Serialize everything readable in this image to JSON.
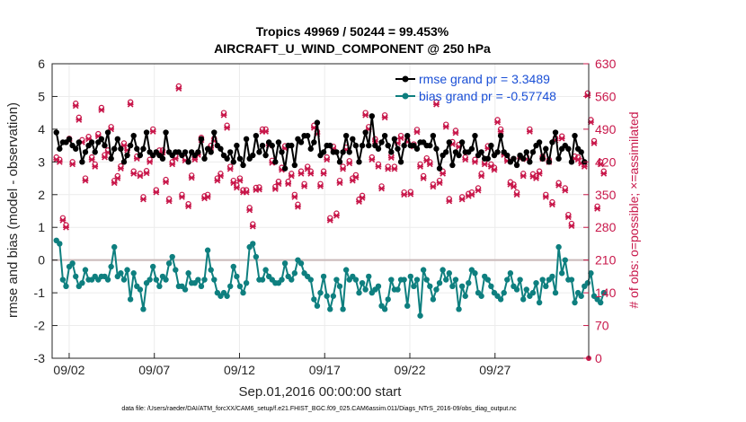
{
  "chart_data": {
    "type": "line",
    "title": "Tropics 49969 / 50244 = 99.453%",
    "subtitle": "AIRCRAFT_U_WIND_COMPONENT @ 250 hPa",
    "xlabel": "Sep.01,2016 00:00:00 start",
    "ylabel": "rmse and bias (model - observation)",
    "y2label": "# of obs: o=possible; ×=assimilated",
    "xlim": [
      0,
      31.5
    ],
    "ylim": [
      -3,
      6
    ],
    "y2lim": [
      0,
      630
    ],
    "x_ticks": [
      {
        "x": 1,
        "label": "09/02"
      },
      {
        "x": 6,
        "label": "09/07"
      },
      {
        "x": 11,
        "label": "09/12"
      },
      {
        "x": 16,
        "label": "09/17"
      },
      {
        "x": 21,
        "label": "09/22"
      },
      {
        "x": 26,
        "label": "09/27"
      }
    ],
    "y_ticks": [
      -3,
      -2,
      -1,
      0,
      1,
      2,
      3,
      4,
      5,
      6
    ],
    "y2_ticks": [
      0,
      70,
      140,
      210,
      280,
      350,
      420,
      490,
      560,
      630
    ],
    "grid": true,
    "legend_position": "top-right",
    "series": [
      {
        "name": "rmse",
        "legend": "rmse grand pr = 3.3489",
        "color": "#000000",
        "axis": "left",
        "values": [
          3.9,
          3.4,
          3.6,
          3.6,
          3.7,
          3.5,
          3.4,
          3.6,
          3.0,
          3.3,
          3.5,
          3.6,
          3.3,
          3.6,
          3.7,
          3.5,
          3.9,
          3.1,
          3.4,
          3.7,
          3.4,
          3.0,
          3.2,
          3.5,
          3.8,
          3.4,
          3.2,
          3.4,
          3.9,
          3.3,
          3.2,
          3.3,
          3.2,
          3.1,
          3.9,
          3.3,
          3.2,
          3.3,
          3.3,
          3.2,
          3.3,
          3.0,
          3.3,
          3.2,
          3.3,
          3.7,
          3.1,
          3.4,
          3.3,
          3.9,
          3.5,
          3.4,
          3.2,
          3.1,
          3.3,
          3.0,
          3.5,
          3.1,
          2.9,
          3.7,
          3.1,
          3.2,
          3.8,
          3.3,
          3.5,
          3.2,
          3.6,
          3.5,
          3.0,
          3.6,
          3.3,
          2.8,
          3.5,
          3.5,
          2.9,
          3.7,
          3.6,
          3.8,
          3.8,
          3.4,
          3.6,
          4.2,
          3.2,
          3.3,
          3.5,
          3.5,
          3.3,
          3.3,
          3.0,
          3.3,
          3.8,
          3.3,
          3.7,
          3.5,
          3.0,
          3.5,
          3.9,
          3.5,
          4.4,
          3.5,
          3.4,
          3.6,
          3.8,
          3.5,
          3.3,
          3.7,
          3.4,
          3.0,
          3.5,
          3.8,
          3.5,
          3.5,
          3.4,
          3.6,
          3.6,
          3.5,
          3.5,
          3.8,
          3.4,
          2.8,
          3.2,
          3.3,
          3.6,
          2.9,
          3.3,
          3.2,
          3.6,
          3.3,
          3.3,
          3.4,
          3.8,
          3.2,
          3.3,
          3.1,
          3.1,
          3.5,
          3.2,
          3.3,
          3.8,
          3.3,
          3.2,
          3.0,
          3.1,
          2.9,
          3.2,
          3.1,
          3.3,
          3.0,
          3.3,
          3.5,
          3.6,
          3.1,
          3.4,
          3.0,
          3.6,
          3.9,
          3.1,
          3.4,
          3.5,
          3.4,
          3.0,
          3.8,
          3.4,
          3.3,
          3.0
        ]
      },
      {
        "name": "bias",
        "legend": "bias grand pr = -0.57748",
        "color": "#0e7f7f",
        "axis": "left",
        "values": [
          0.6,
          0.5,
          -0.6,
          -0.8,
          -0.2,
          -0.1,
          -0.5,
          -0.8,
          -0.7,
          -0.3,
          -0.6,
          -0.6,
          -0.5,
          -0.6,
          -0.5,
          -0.5,
          -0.6,
          -0.2,
          0.4,
          -0.5,
          -0.4,
          -0.6,
          -0.3,
          -1.2,
          -0.4,
          -0.8,
          -0.9,
          -1.5,
          -0.7,
          -0.6,
          -0.2,
          -0.6,
          -0.8,
          -0.5,
          -0.6,
          -0.1,
          0.1,
          -0.3,
          -0.8,
          -0.8,
          -0.9,
          -0.4,
          -0.7,
          -0.7,
          -0.6,
          -0.8,
          -0.6,
          0.3,
          -0.3,
          -0.6,
          -1.0,
          -1.1,
          -1.0,
          -1.1,
          -0.8,
          -0.2,
          -0.5,
          -0.8,
          -1.0,
          -0.7,
          0.4,
          0.5,
          0.1,
          -0.6,
          -0.6,
          -0.3,
          -0.5,
          -0.6,
          -0.7,
          -0.7,
          -0.6,
          -0.1,
          -0.5,
          -0.6,
          -0.4,
          0.0,
          -0.1,
          -0.4,
          -0.5,
          -0.6,
          -1.2,
          -1.4,
          -1.0,
          -0.5,
          -1.1,
          -1.5,
          -1.1,
          -0.6,
          -0.8,
          -1.5,
          -0.3,
          -0.6,
          -0.5,
          -0.6,
          -1.0,
          -0.7,
          -0.9,
          -0.5,
          -1.0,
          -0.9,
          -0.8,
          -1.4,
          -1.5,
          -1.2,
          -0.6,
          -0.9,
          -0.9,
          -0.6,
          -0.6,
          -1.4,
          -0.5,
          -0.8,
          -0.6,
          -1.7,
          -0.3,
          -0.6,
          -0.8,
          -1.2,
          -0.9,
          -0.7,
          -0.3,
          -0.6,
          -0.4,
          -0.8,
          -0.6,
          -1.5,
          -0.8,
          -1.1,
          -0.7,
          -0.3,
          -0.4,
          -1.0,
          -1.1,
          -0.5,
          -0.6,
          -0.8,
          -1.0,
          -1.1,
          -1.2,
          -1.0,
          -0.6,
          -0.4,
          -0.8,
          -0.9,
          -0.6,
          -1.2,
          -0.9,
          -1.1,
          -1.0,
          -0.7,
          -1.3,
          -0.6,
          -0.8,
          -0.6,
          -0.5,
          -1.0,
          0.4,
          -0.4,
          0.0,
          -0.6,
          -0.6,
          -1.3,
          -1.0,
          -1.1,
          -0.8,
          -0.7,
          -0.4,
          -1.1,
          -1.2,
          -1.3,
          -1.0
        ]
      },
      {
        "name": "possible",
        "marker": "o",
        "color": "#c8174a",
        "axis": "right",
        "values": [
          430,
          425,
          300,
          285,
          470,
          420,
          545,
          515,
          467,
          385,
          474,
          430,
          415,
          480,
          536,
          435,
          445,
          495,
          380,
          390,
          411,
          460,
          450,
          548,
          400,
          432,
          395,
          345,
          401,
          425,
          490,
          360,
          445,
          445,
          382,
          341,
          420,
          432,
          582,
          350,
          428,
          330,
          391,
          430,
          440,
          472,
          347,
          350,
          455,
          470,
          385,
          395,
          525,
          498,
          410,
          380,
          370,
          385,
          360,
          360,
          322,
          287,
          365,
          366,
          490,
          490,
          460,
          423,
          367,
          378,
          408,
          454,
          378,
          395,
          350,
          329,
          400,
          373,
          410,
          400,
          498,
          485,
          373,
          400,
          430,
          300,
          453,
          310,
          380,
          410,
          451,
          422,
          385,
          392,
          340,
          348,
          525,
          495,
          430,
          469,
          415,
          368,
          520,
          410,
          434,
          410,
          465,
          476,
          355,
          468,
          356,
          458,
          489,
          415,
          390,
          428,
          420,
          372,
          548,
          380,
          400,
          500,
          341,
          463,
          487,
          457,
          345,
          430,
          352,
          355,
          425,
          364,
          395,
          420,
          454,
          415,
          408,
          510,
          490,
          440,
          427,
          377,
          372,
          355,
          432,
          395,
          431,
          490,
          394,
          390,
          400,
          432,
          350,
          425,
          334,
          471,
          375,
          475,
          364,
          307,
          288,
          432,
          430,
          422,
          415,
          567,
          510,
          465,
          325,
          420,
          400
        ]
      },
      {
        "name": "assimilated",
        "marker": "x",
        "color": "#c8174a",
        "axis": "right",
        "values": [
          425,
          420,
          295,
          280,
          465,
          415,
          540,
          510,
          462,
          380,
          469,
          425,
          410,
          475,
          531,
          430,
          440,
          490,
          375,
          385,
          406,
          455,
          445,
          543,
          395,
          427,
          390,
          340,
          396,
          420,
          485,
          355,
          440,
          440,
          377,
          336,
          415,
          427,
          577,
          345,
          423,
          325,
          386,
          425,
          435,
          467,
          342,
          345,
          450,
          465,
          380,
          390,
          520,
          493,
          405,
          375,
          365,
          380,
          355,
          355,
          317,
          282,
          360,
          361,
          485,
          485,
          455,
          418,
          362,
          373,
          403,
          449,
          373,
          390,
          345,
          324,
          395,
          368,
          405,
          395,
          493,
          480,
          368,
          395,
          425,
          295,
          448,
          305,
          375,
          405,
          446,
          417,
          380,
          387,
          335,
          343,
          520,
          490,
          425,
          464,
          410,
          363,
          515,
          405,
          429,
          405,
          460,
          471,
          350,
          463,
          351,
          453,
          484,
          410,
          385,
          423,
          415,
          367,
          543,
          375,
          395,
          495,
          336,
          458,
          482,
          452,
          340,
          425,
          347,
          350,
          420,
          359,
          390,
          415,
          449,
          410,
          403,
          505,
          485,
          435,
          422,
          372,
          367,
          350,
          427,
          390,
          426,
          485,
          389,
          385,
          395,
          427,
          345,
          420,
          329,
          466,
          370,
          470,
          359,
          302,
          283,
          427,
          425,
          417,
          410,
          562,
          505,
          460,
          320,
          415,
          395
        ]
      }
    ]
  },
  "footer": "data file: /Users/raeder/DAI/ATM_forcXX/CAM6_setup/f.e21.FHIST_BGC.f09_025.CAM6assim.011/Diags_NTrS_2016-09/obs_diag_output.nc"
}
